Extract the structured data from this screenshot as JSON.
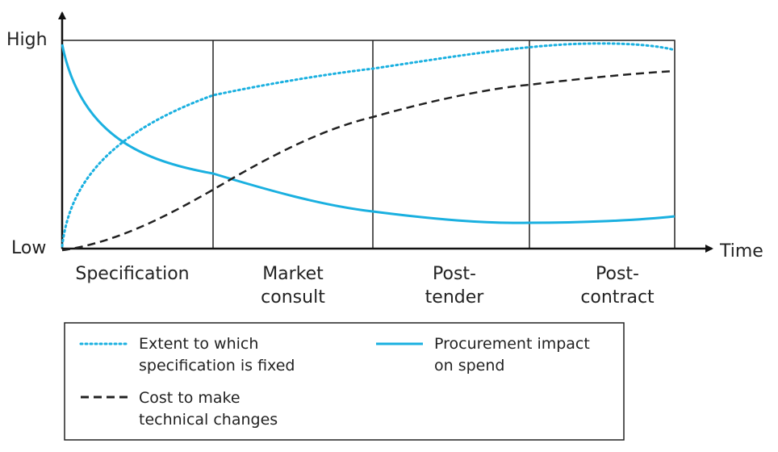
{
  "axis": {
    "y_high": "High",
    "y_low": "Low",
    "x": "Time"
  },
  "phases": [
    {
      "lines": [
        "Specification"
      ]
    },
    {
      "lines": [
        "Market",
        "consult"
      ]
    },
    {
      "lines": [
        "Post-",
        "tender"
      ]
    },
    {
      "lines": [
        "Post-",
        "contract"
      ]
    }
  ],
  "legend": [
    {
      "lines": [
        "Extent to which",
        "specification is fixed"
      ]
    },
    {
      "lines": [
        "Procurement impact",
        "on spend"
      ]
    },
    {
      "lines": [
        "Cost to make",
        "technical changes"
      ]
    }
  ]
}
